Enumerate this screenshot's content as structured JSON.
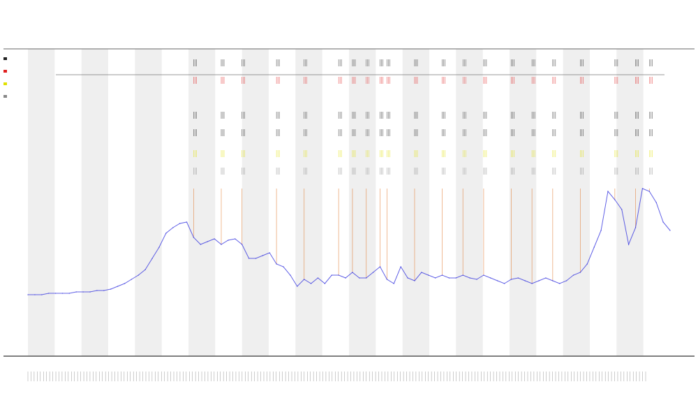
{
  "chart_data": {
    "type": "line",
    "title": "",
    "xlabel": "",
    "ylabel": "",
    "legend_position": "top-left",
    "grid": false,
    "band_color": "#efefef",
    "band_count": 12,
    "line_color": "#3a3ae0",
    "spike_color": "#e07020",
    "marker_colors": [
      "#222222",
      "#e02020",
      "#e0e000",
      "#888888"
    ],
    "series": [
      {
        "name": "",
        "y": [
          44,
          44,
          44,
          45,
          45,
          45,
          45,
          46,
          46,
          46,
          47,
          47,
          48,
          50,
          52,
          55,
          58,
          62,
          70,
          78,
          88,
          92,
          95,
          96,
          85,
          80,
          82,
          84,
          80,
          83,
          84,
          80,
          70,
          70,
          72,
          74,
          66,
          64,
          58,
          50,
          55,
          52,
          56,
          52,
          58,
          58,
          56,
          60,
          56,
          56,
          60,
          64,
          55,
          52,
          64,
          56,
          54,
          60,
          58,
          56,
          58,
          56,
          56,
          58,
          56,
          55,
          58,
          56,
          54,
          52,
          55,
          56,
          54,
          52,
          54,
          56,
          54,
          52,
          54,
          58,
          60,
          66,
          78,
          90,
          118,
          112,
          105,
          80,
          92,
          120,
          118,
          110,
          96,
          90
        ]
      }
    ],
    "spike_indices": [
      24,
      28,
      31,
      36,
      40,
      45,
      47,
      49,
      51,
      52,
      56,
      60,
      63,
      66,
      70,
      73,
      76,
      80,
      85,
      88,
      90
    ]
  }
}
